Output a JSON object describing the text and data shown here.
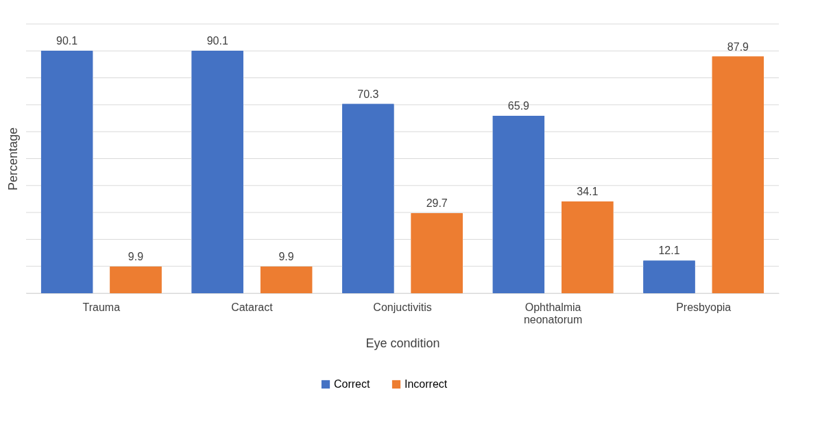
{
  "chart_data": {
    "type": "bar",
    "xlabel": "Eye condition",
    "ylabel": "Percentage",
    "categories": [
      "Trauma",
      "Cataract",
      "Conjuctivitis",
      "Ophthalmia neonatorum",
      "Presbyopia"
    ],
    "series": [
      {
        "name": "Correct",
        "color": "#4472c4",
        "values": [
          90.1,
          90.1,
          70.3,
          65.9,
          12.1
        ]
      },
      {
        "name": "Incorrect",
        "color": "#ed7d31",
        "values": [
          9.9,
          9.9,
          29.7,
          34.1,
          87.9
        ]
      }
    ],
    "ylim": [
      0,
      100
    ],
    "yticks": [
      {
        "value": 0,
        "label": null
      },
      {
        "value": 10,
        "label": null
      },
      {
        "value": 20,
        "label": null
      },
      {
        "value": 30,
        "label": null
      },
      {
        "value": 40,
        "label": null
      },
      {
        "value": 50,
        "label": null
      },
      {
        "value": 60,
        "label": null
      },
      {
        "value": 70,
        "label": null
      },
      {
        "value": 80,
        "label": null
      },
      {
        "value": 90,
        "label": null
      },
      {
        "value": 100,
        "label": null
      }
    ],
    "tick_labels": "x",
    "grid": "y",
    "legend": "bottom",
    "data_labels": true
  }
}
